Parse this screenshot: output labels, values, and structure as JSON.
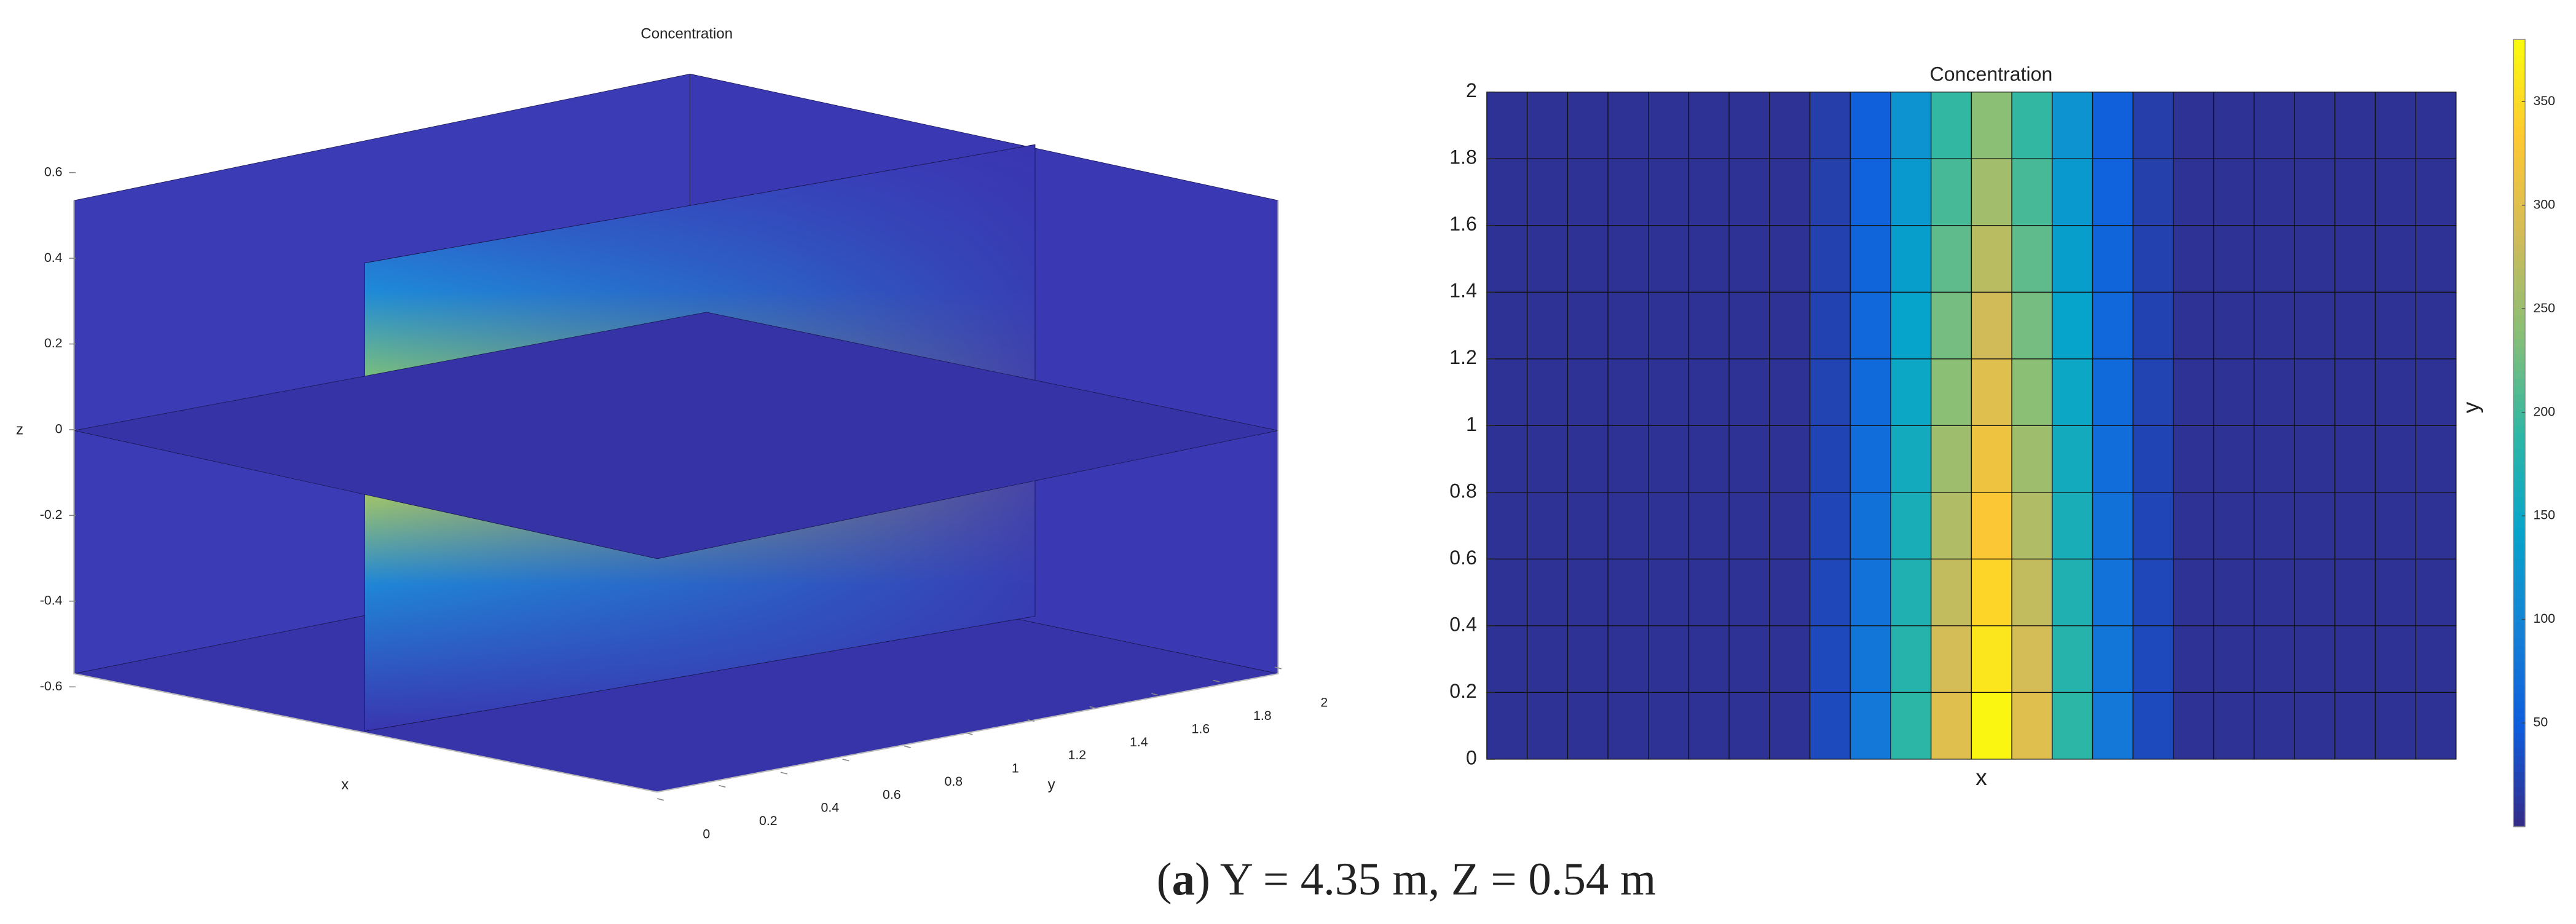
{
  "chart_data": [
    {
      "type": "surface3d",
      "title": "Concentration",
      "xlabel": "x",
      "ylabel": "y",
      "zlabel": "z",
      "zlim": [
        -0.6,
        0.6
      ],
      "zticks": [
        -0.6,
        -0.4,
        -0.2,
        0,
        0.2,
        0.4,
        0.6
      ],
      "ylim": [
        0,
        2
      ],
      "yticks": [
        0,
        0.2,
        0.4,
        0.6,
        0.8,
        1,
        1.2,
        1.4,
        1.6,
        1.8,
        2
      ]
    },
    {
      "type": "heatmap",
      "title": "Concentration",
      "xlabel": "x",
      "ylabel": "y",
      "ylim": [
        0,
        2
      ],
      "yticks": [
        0,
        0.2,
        0.4,
        0.6,
        0.8,
        1,
        1.2,
        1.4,
        1.6,
        1.8,
        2
      ],
      "clim": [
        0,
        380
      ],
      "cticks": [
        50,
        100,
        150,
        200,
        250,
        300,
        350
      ],
      "colormap": [
        "#352a87",
        "#0f5cdd",
        "#1481d6",
        "#06a4ca",
        "#2eb7a4",
        "#87bf77",
        "#d1bb59",
        "#fec832",
        "#f9fb0e"
      ],
      "values": [
        [
          8,
          8,
          8,
          8,
          8,
          8,
          8,
          8,
          30,
          83,
          188,
          300,
          375,
          300,
          188,
          83,
          30,
          8,
          8,
          8,
          8,
          8,
          8,
          8
        ],
        [
          8,
          8,
          8,
          8,
          8,
          8,
          8,
          8,
          29,
          79,
          180,
          288,
          360,
          288,
          180,
          79,
          29,
          8,
          8,
          8,
          8,
          8,
          8,
          8
        ],
        [
          8,
          8,
          8,
          8,
          8,
          8,
          8,
          8,
          28,
          76,
          173,
          276,
          345,
          276,
          173,
          76,
          28,
          8,
          8,
          8,
          8,
          8,
          8,
          8
        ],
        [
          8,
          8,
          8,
          8,
          8,
          8,
          8,
          8,
          26,
          73,
          165,
          264,
          330,
          264,
          165,
          73,
          26,
          8,
          8,
          8,
          8,
          8,
          8,
          8
        ],
        [
          8,
          8,
          8,
          8,
          8,
          8,
          8,
          8,
          25,
          69,
          158,
          252,
          315,
          252,
          158,
          69,
          25,
          8,
          8,
          8,
          8,
          8,
          8,
          8
        ],
        [
          8,
          8,
          8,
          8,
          8,
          8,
          8,
          8,
          24,
          66,
          150,
          240,
          300,
          240,
          150,
          66,
          24,
          8,
          8,
          8,
          8,
          8,
          8,
          8
        ],
        [
          8,
          8,
          8,
          8,
          8,
          8,
          8,
          8,
          23,
          63,
          143,
          228,
          285,
          228,
          143,
          63,
          23,
          8,
          8,
          8,
          8,
          8,
          8,
          8
        ],
        [
          8,
          8,
          8,
          8,
          8,
          8,
          8,
          8,
          22,
          59,
          135,
          216,
          270,
          216,
          135,
          59,
          22,
          8,
          8,
          8,
          8,
          8,
          8,
          8
        ],
        [
          8,
          8,
          8,
          8,
          8,
          8,
          8,
          8,
          20,
          56,
          128,
          204,
          255,
          204,
          128,
          56,
          20,
          8,
          8,
          8,
          8,
          8,
          8,
          8
        ],
        [
          8,
          8,
          8,
          8,
          8,
          8,
          8,
          8,
          19,
          53,
          120,
          192,
          240,
          192,
          120,
          53,
          19,
          8,
          8,
          8,
          8,
          8,
          8,
          8
        ]
      ]
    }
  ],
  "caption": {
    "parts": [
      "(",
      "a",
      ") Y = 4.35 m, Z = 0.54 m"
    ]
  }
}
